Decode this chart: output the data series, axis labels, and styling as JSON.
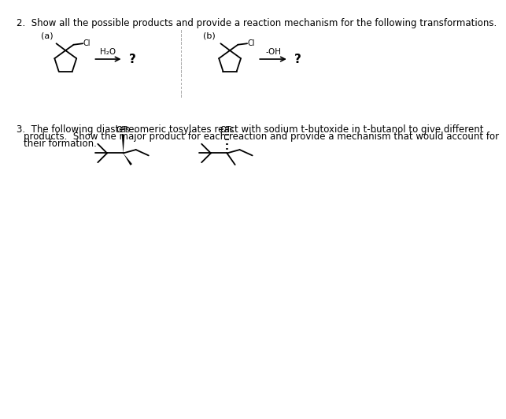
{
  "title2": "2.  Show all the possible products and provide a reaction mechanism for the following transformations.",
  "title3": "3.  The following diastereomeric tosylates react with sodium t-butoxide in t-butanol to give different",
  "title3b": "products.  Show the major product for each reaction and provide a mechanism that would account for",
  "title3c": "their formation.",
  "label_a": "(a)",
  "label_b": "(b)",
  "reagent_a": "H₂O",
  "reagent_b": "-OH",
  "question_mark": "?",
  "OTs_label": "OTs",
  "bg_color": "#ffffff",
  "text_color": "#000000",
  "line_color": "#000000",
  "font_size_main": 8.5,
  "font_size_label": 8,
  "font_size_reagent": 7.5,
  "font_size_question": 11,
  "font_size_ots": 7.5
}
